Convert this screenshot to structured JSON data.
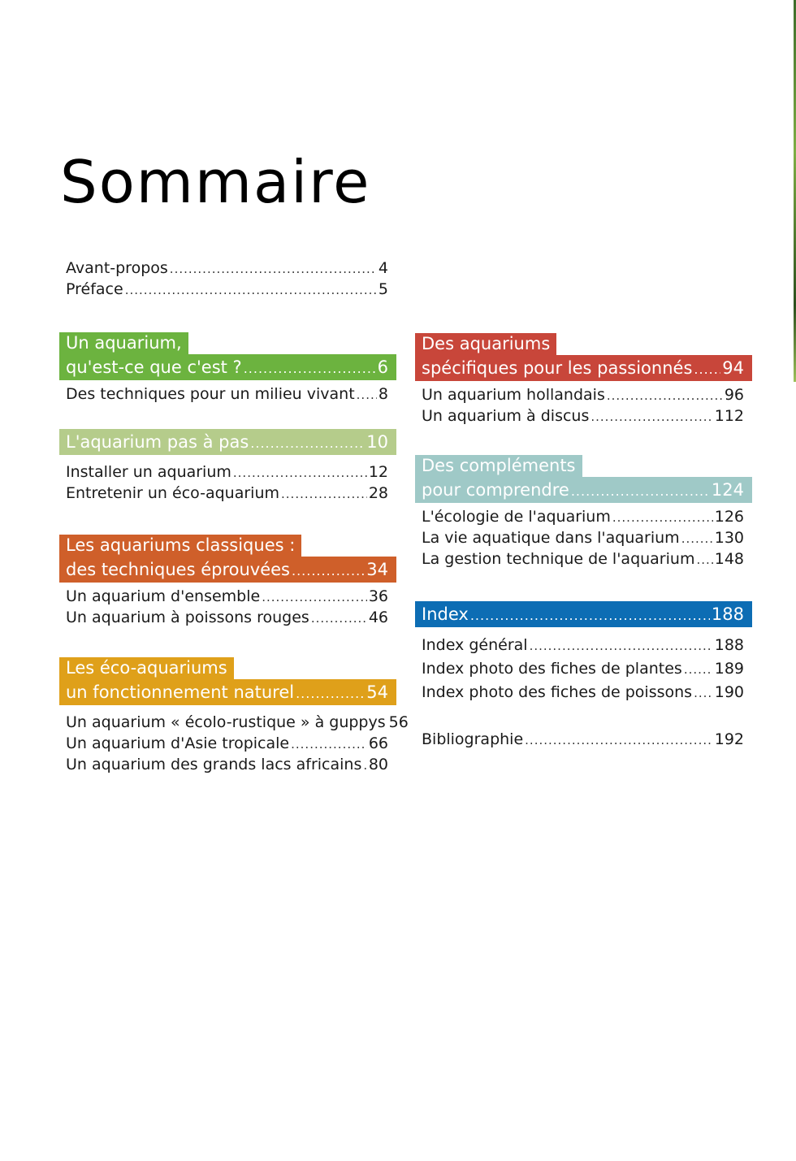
{
  "title": "Sommaire",
  "intro": [
    {
      "label": "Avant-propos",
      "page": "4"
    },
    {
      "label": "Préface",
      "page": "5"
    }
  ],
  "left": [
    {
      "color": "#6cb33f",
      "head_line1": "Un aquarium,",
      "head_line2": "qu'est-ce que c'est ?",
      "head_page": "6",
      "items": [
        {
          "label": "Des techniques pour un milieu vivant",
          "page": "8"
        }
      ]
    },
    {
      "color": "#b5cc8b",
      "head_line1": "",
      "head_line2": "L'aquarium pas à pas",
      "head_page": "10",
      "items": [
        {
          "label": "Installer un aquarium",
          "page": "12"
        },
        {
          "label": "Entretenir un éco-aquarium",
          "page": "28"
        }
      ]
    },
    {
      "color": "#cf5f2a",
      "head_line1": "Les aquariums classiques :",
      "head_line2": "des techniques éprouvées",
      "head_page": "34",
      "items": [
        {
          "label": "Un aquarium d'ensemble",
          "page": "36"
        },
        {
          "label": "Un aquarium à poissons rouges",
          "page": "46"
        }
      ]
    },
    {
      "color": "#dfa01a",
      "head_line1": "Les éco-aquariums",
      "head_line2": "un fonctionnement naturel",
      "head_page": "54",
      "items": [
        {
          "label": "Un aquarium « écolo-rustique » à guppys",
          "page": "56"
        },
        {
          "label": "Un aquarium d'Asie tropicale",
          "page": "66"
        },
        {
          "label": "Un aquarium des grands lacs africains",
          "page": "80"
        }
      ]
    }
  ],
  "right": [
    {
      "color": "#c8463a",
      "head_line1": "Des aquariums",
      "head_line2": "spécifiques pour les passionnés",
      "head_page": "94",
      "items": [
        {
          "label": "Un aquarium hollandais",
          "page": "96"
        },
        {
          "label": "Un aquarium à discus",
          "page": "112"
        }
      ]
    },
    {
      "color": "#9fc9c7",
      "head_line1": "Des compléments",
      "head_line2": "pour comprendre",
      "head_page": "124",
      "items": [
        {
          "label": "L'écologie de l'aquarium",
          "page": "126"
        },
        {
          "label": "La vie aquatique dans l'aquarium",
          "page": "130"
        },
        {
          "label": "La gestion technique de l'aquarium",
          "page": "148"
        }
      ]
    },
    {
      "color": "#0d6db4",
      "head_line1": "",
      "head_line2": "Index",
      "head_page": "188",
      "items": [
        {
          "label": "Index général",
          "page": "188"
        },
        {
          "label": "Index photo des fiches de plantes",
          "page": "189"
        },
        {
          "label": "Index photo des fiches de poissons",
          "page": "190"
        }
      ]
    }
  ],
  "bibliography": {
    "label": "Bibliographie",
    "page": "192"
  }
}
